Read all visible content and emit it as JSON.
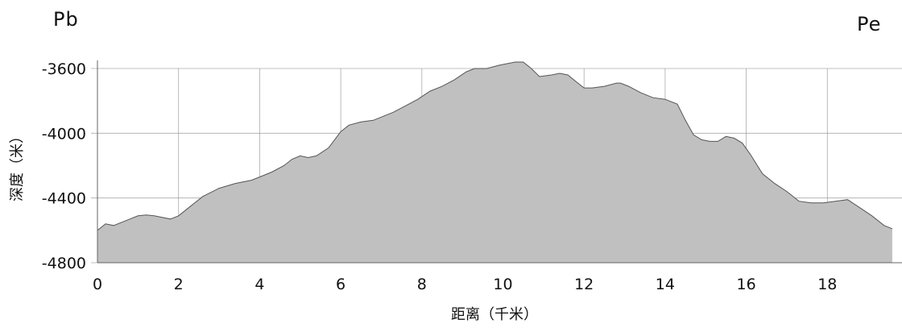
{
  "corner_labels": {
    "left": "Pb",
    "right": "Pe"
  },
  "chart_data": {
    "type": "area",
    "title": "",
    "xlabel": "距离（千米）",
    "ylabel": "深度（米）",
    "xlim": [
      0,
      19.6
    ],
    "ylim": [
      -4800,
      -3600
    ],
    "x_ticks": [
      0,
      2,
      4,
      6,
      8,
      10,
      12,
      14,
      16,
      18
    ],
    "y_ticks": [
      -3600,
      -4000,
      -4400,
      -4800
    ],
    "grid": true,
    "fill_color": "#c0c0c0",
    "line_color": "#555555",
    "series": [
      {
        "x": [
          0,
          0.2,
          0.4,
          0.6,
          0.8,
          1.0,
          1.2,
          1.4,
          1.6,
          1.8,
          2.0,
          2.3,
          2.6,
          3.0,
          3.4,
          3.8,
          4.0,
          4.3,
          4.6,
          4.8,
          5.0,
          5.2,
          5.4,
          5.7,
          6.0,
          6.2,
          6.5,
          6.8,
          7.0,
          7.3,
          7.6,
          7.9,
          8.2,
          8.5,
          8.8,
          9.1,
          9.3,
          9.6,
          9.9,
          10.1,
          10.3,
          10.5,
          10.7,
          10.9,
          11.2,
          11.4,
          11.6,
          11.8,
          12.0,
          12.2,
          12.5,
          12.8,
          12.9,
          13.1,
          13.4,
          13.7,
          14.0,
          14.3,
          14.5,
          14.7,
          14.9,
          15.1,
          15.3,
          15.5,
          15.7,
          15.9,
          16.1,
          16.4,
          16.7,
          17.0,
          17.3,
          17.6,
          17.9,
          18.2,
          18.5,
          18.8,
          19.1,
          19.4,
          19.6
        ],
        "values": [
          -4600,
          -4560,
          -4570,
          -4550,
          -4530,
          -4510,
          -4505,
          -4510,
          -4520,
          -4530,
          -4510,
          -4450,
          -4390,
          -4340,
          -4310,
          -4290,
          -4270,
          -4240,
          -4200,
          -4160,
          -4140,
          -4150,
          -4140,
          -4090,
          -3990,
          -3950,
          -3930,
          -3920,
          -3900,
          -3870,
          -3830,
          -3790,
          -3740,
          -3710,
          -3670,
          -3620,
          -3600,
          -3600,
          -3580,
          -3570,
          -3560,
          -3560,
          -3600,
          -3650,
          -3640,
          -3630,
          -3640,
          -3680,
          -3720,
          -3720,
          -3710,
          -3690,
          -3690,
          -3710,
          -3750,
          -3780,
          -3790,
          -3820,
          -3920,
          -4010,
          -4040,
          -4050,
          -4050,
          -4020,
          -4030,
          -4060,
          -4130,
          -4250,
          -4310,
          -4360,
          -4420,
          -4430,
          -4430,
          -4420,
          -4410,
          -4460,
          -4510,
          -4570,
          -4590
        ]
      }
    ]
  }
}
